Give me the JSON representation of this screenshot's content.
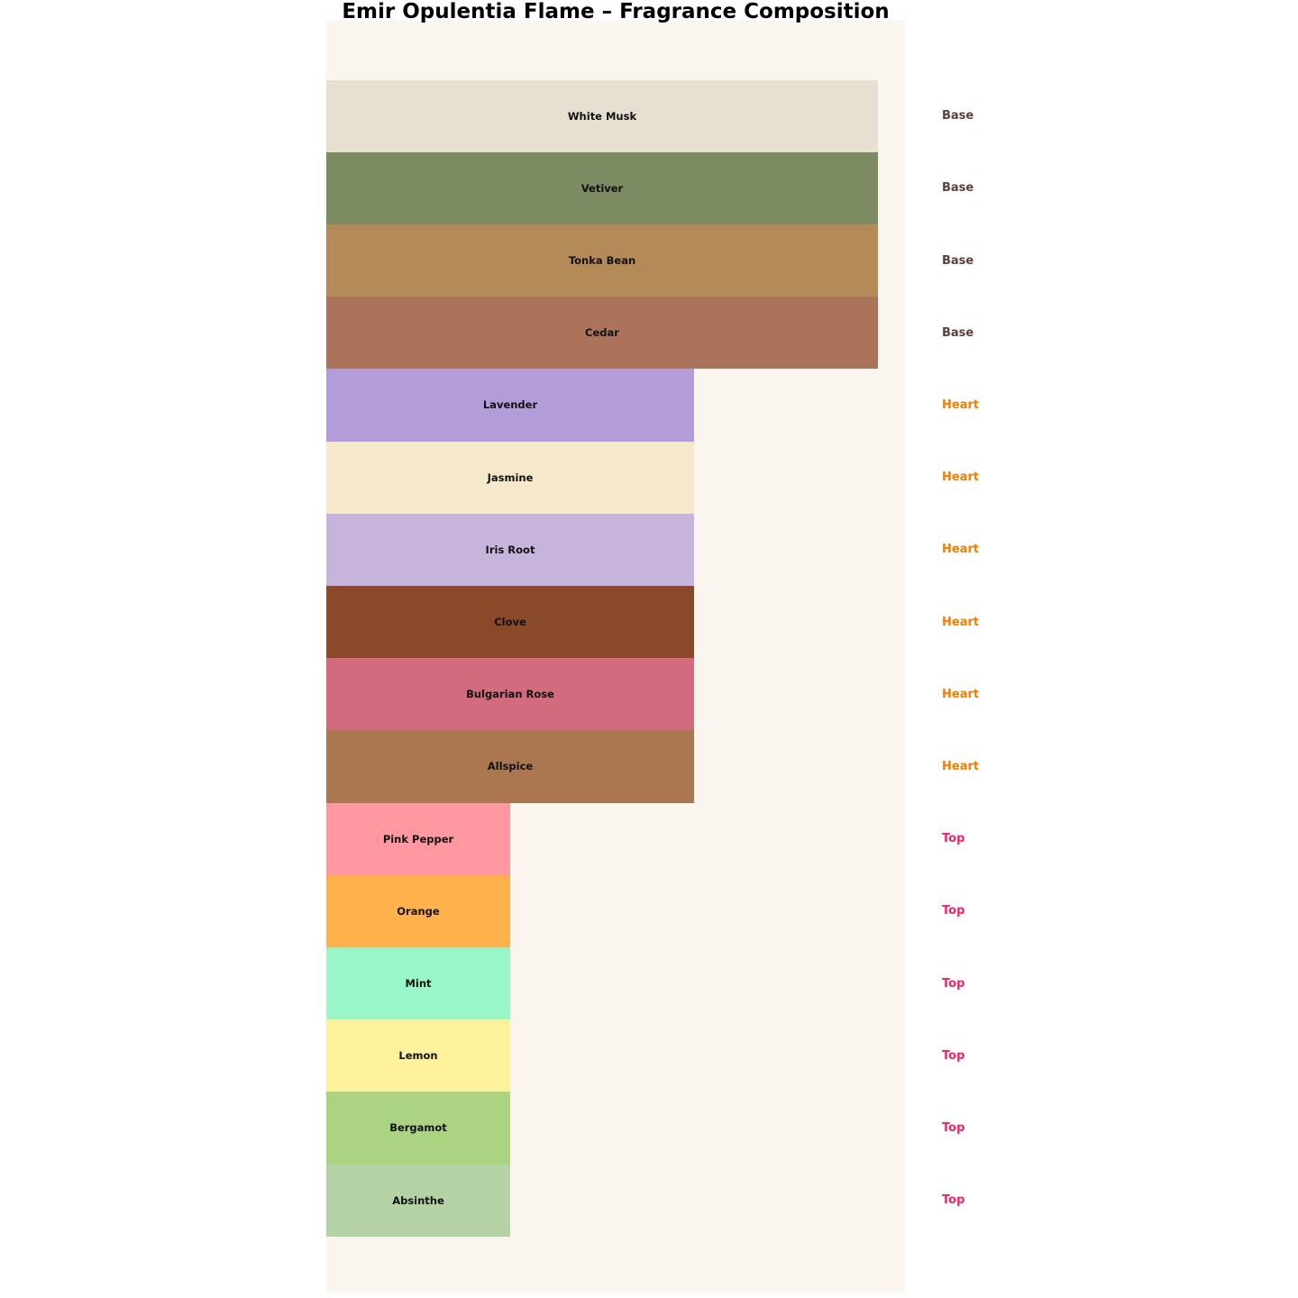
{
  "chart_data": {
    "type": "bar",
    "orientation": "horizontal",
    "title": "Emir Opulentia Flame – Fragrance Composition",
    "xlabel": "",
    "ylabel": "",
    "grid": false,
    "axes_visible": false,
    "plot_background": "#faf5ee",
    "figure_background": "#ffffff",
    "bar_label_color": "#111111",
    "xlim": [
      0,
      3.15
    ],
    "category_legend": {
      "Base": "#5e4238",
      "Heart": "#ef7f00",
      "Top": "#ed256d"
    },
    "notes": [
      {
        "name": "White Musk",
        "category": "Base",
        "value": 3,
        "color": "#e7e0d1"
      },
      {
        "name": "Vetiver",
        "category": "Base",
        "value": 3,
        "color": "#7c8b61"
      },
      {
        "name": "Tonka Bean",
        "category": "Base",
        "value": 3,
        "color": "#b58a59"
      },
      {
        "name": "Cedar",
        "category": "Base",
        "value": 3,
        "color": "#ab745a"
      },
      {
        "name": "Lavender",
        "category": "Heart",
        "value": 2,
        "color": "#b29dd9"
      },
      {
        "name": "Jasmine",
        "category": "Heart",
        "value": 2,
        "color": "#f6e8cd"
      },
      {
        "name": "Iris Root",
        "category": "Heart",
        "value": 2,
        "color": "#c6b4dc"
      },
      {
        "name": "Clove",
        "category": "Heart",
        "value": 2,
        "color": "#8a4a29"
      },
      {
        "name": "Bulgarian Rose",
        "category": "Heart",
        "value": 2,
        "color": "#d36b7f"
      },
      {
        "name": "Allspice",
        "category": "Heart",
        "value": 2,
        "color": "#aa7750"
      },
      {
        "name": "Pink Pepper",
        "category": "Top",
        "value": 1,
        "color": "#ff98a0"
      },
      {
        "name": "Orange",
        "category": "Top",
        "value": 1,
        "color": "#ffb24b"
      },
      {
        "name": "Mint",
        "category": "Top",
        "value": 1,
        "color": "#98f6c8"
      },
      {
        "name": "Lemon",
        "category": "Top",
        "value": 1,
        "color": "#fdf19b"
      },
      {
        "name": "Bergamot",
        "category": "Top",
        "value": 1,
        "color": "#acd381"
      },
      {
        "name": "Absinthe",
        "category": "Top",
        "value": 1,
        "color": "#b5d2a6"
      }
    ]
  }
}
